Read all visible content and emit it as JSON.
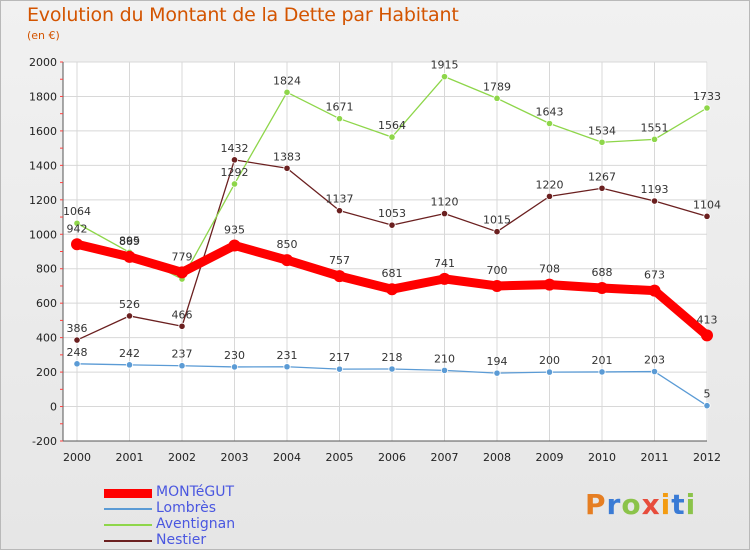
{
  "header": {
    "title": "Evolution du Montant de la Dette par Habitant",
    "subtitle": "(en €)"
  },
  "chart_data": {
    "type": "line",
    "title": "Evolution du Montant de la Dette par Habitant",
    "subtitle": "(en €)",
    "xlabel": "",
    "ylabel": "",
    "x": [
      "2000",
      "2001",
      "2002",
      "2003",
      "2004",
      "2005",
      "2006",
      "2007",
      "2008",
      "2009",
      "2010",
      "2011",
      "2012"
    ],
    "yticks": [
      "-200",
      "0",
      "200",
      "400",
      "600",
      "800",
      "1000",
      "1200",
      "1400",
      "1600",
      "1800",
      "2000"
    ],
    "ylim": [
      -200,
      2000
    ],
    "grid": true,
    "legend_position": "bottom-left",
    "series": [
      {
        "name": "MONTéGUT",
        "color": "#ff0000",
        "values": [
          942,
          869,
          779,
          935,
          850,
          757,
          681,
          741,
          700,
          708,
          688,
          673,
          413
        ]
      },
      {
        "name": "Lombrès",
        "color": "#5b9bd5",
        "values": [
          248,
          242,
          237,
          230,
          231,
          217,
          218,
          210,
          194,
          200,
          201,
          203,
          5
        ]
      },
      {
        "name": "Aventignan",
        "color": "#8ed64a",
        "values": [
          1064,
          895,
          740,
          1292,
          1824,
          1671,
          1564,
          1915,
          1789,
          1643,
          1534,
          1551,
          1733
        ]
      },
      {
        "name": "Nestier",
        "color": "#6b2020",
        "values": [
          386,
          526,
          466,
          1432,
          1383,
          1137,
          1053,
          1120,
          1015,
          1220,
          1267,
          1193,
          1104
        ]
      }
    ],
    "data_labels": {
      "MONTéGUT": [
        "942",
        "869",
        "779",
        "935",
        "850",
        "757",
        "681",
        "741",
        "700",
        "708",
        "688",
        "673",
        "413"
      ],
      "Lombrès": [
        "248",
        "242",
        "237",
        "230",
        "231",
        "217",
        "218",
        "210",
        "194",
        "200",
        "201",
        "203",
        "5"
      ],
      "Aventignan": [
        "1064",
        "895",
        "",
        "1292",
        "1824",
        "1671",
        "1564",
        "1915",
        "1789",
        "1643",
        "1534",
        "1551",
        "1733"
      ],
      "Nestier": [
        "386",
        "526",
        "466",
        "1432",
        "1383",
        "1137",
        "1053",
        "1120",
        "1015",
        "1220",
        "1267",
        "1193",
        "1104"
      ]
    }
  },
  "legend": {
    "items": [
      {
        "label": "MONTéGUT",
        "color": "#ff0000"
      },
      {
        "label": "Lombrès",
        "color": "#5b9bd5"
      },
      {
        "label": "Aventignan",
        "color": "#8ed64a"
      },
      {
        "label": "Nestier",
        "color": "#6b2020"
      }
    ]
  },
  "logo": {
    "text": "Proxiti",
    "colors": [
      "#e67e22",
      "#3a7bd5",
      "#8bc34a",
      "#e74c3c",
      "#f39c12",
      "#3a7bd5",
      "#8bc34a"
    ]
  }
}
